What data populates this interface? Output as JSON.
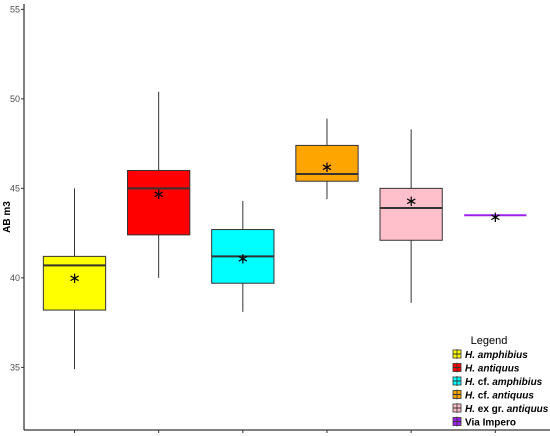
{
  "chart_data": {
    "type": "box",
    "ylabel": "AB m3",
    "xlabel": "",
    "ylim": [
      31.5,
      55.3
    ],
    "yticks": [
      35,
      40,
      45,
      50,
      55
    ],
    "grid": false,
    "legend": {
      "title": "Legend",
      "placement": "bottom-right",
      "entries": [
        {
          "italic": "H. amphibius",
          "plain": "",
          "color": "#ffff00"
        },
        {
          "italic": "H. antiquus",
          "plain": "",
          "color": "#ff0000"
        },
        {
          "italic": "H.",
          "plain": " cf. ",
          "italic2": "amphibius",
          "color": "#00ffff"
        },
        {
          "italic": "H.",
          "plain": " cf. ",
          "italic2": "antiquus",
          "color": "#ffa500"
        },
        {
          "italic": "H.",
          "plain": " ex gr. ",
          "italic2": "antiquus",
          "color": "#ffc0cb"
        },
        {
          "italic": "",
          "plain": "Via Impero",
          "color": "#a020f0"
        }
      ]
    },
    "series": [
      {
        "name": "H. amphibius",
        "color": "#ffff00",
        "min": 34.9,
        "q1": 38.2,
        "median": 40.7,
        "q3": 41.2,
        "max": 45.0,
        "mean": 40.1
      },
      {
        "name": "H. antiquus",
        "color": "#ff0000",
        "min": 40.0,
        "q1": 42.4,
        "median": 45.0,
        "q3": 46.0,
        "max": 50.4,
        "mean": 44.8
      },
      {
        "name": "H. cf. amphibius",
        "color": "#00ffff",
        "min": 38.1,
        "q1": 39.7,
        "median": 41.2,
        "q3": 42.7,
        "max": 44.3,
        "mean": 41.2
      },
      {
        "name": "H. cf. antiquus",
        "color": "#ffa500",
        "min": 44.4,
        "q1": 45.4,
        "median": 45.8,
        "q3": 47.4,
        "max": 48.9,
        "mean": 46.3
      },
      {
        "name": "H. ex gr. antiquus",
        "color": "#ffc0cb",
        "min": 38.6,
        "q1": 42.1,
        "median": 43.9,
        "q3": 45.0,
        "max": 48.3,
        "mean": 44.4
      },
      {
        "name": "Via Impero",
        "color": "#a020f0",
        "min": 43.5,
        "q1": 43.5,
        "median": 43.5,
        "q3": 43.5,
        "max": 43.5,
        "mean": 43.5
      }
    ]
  }
}
